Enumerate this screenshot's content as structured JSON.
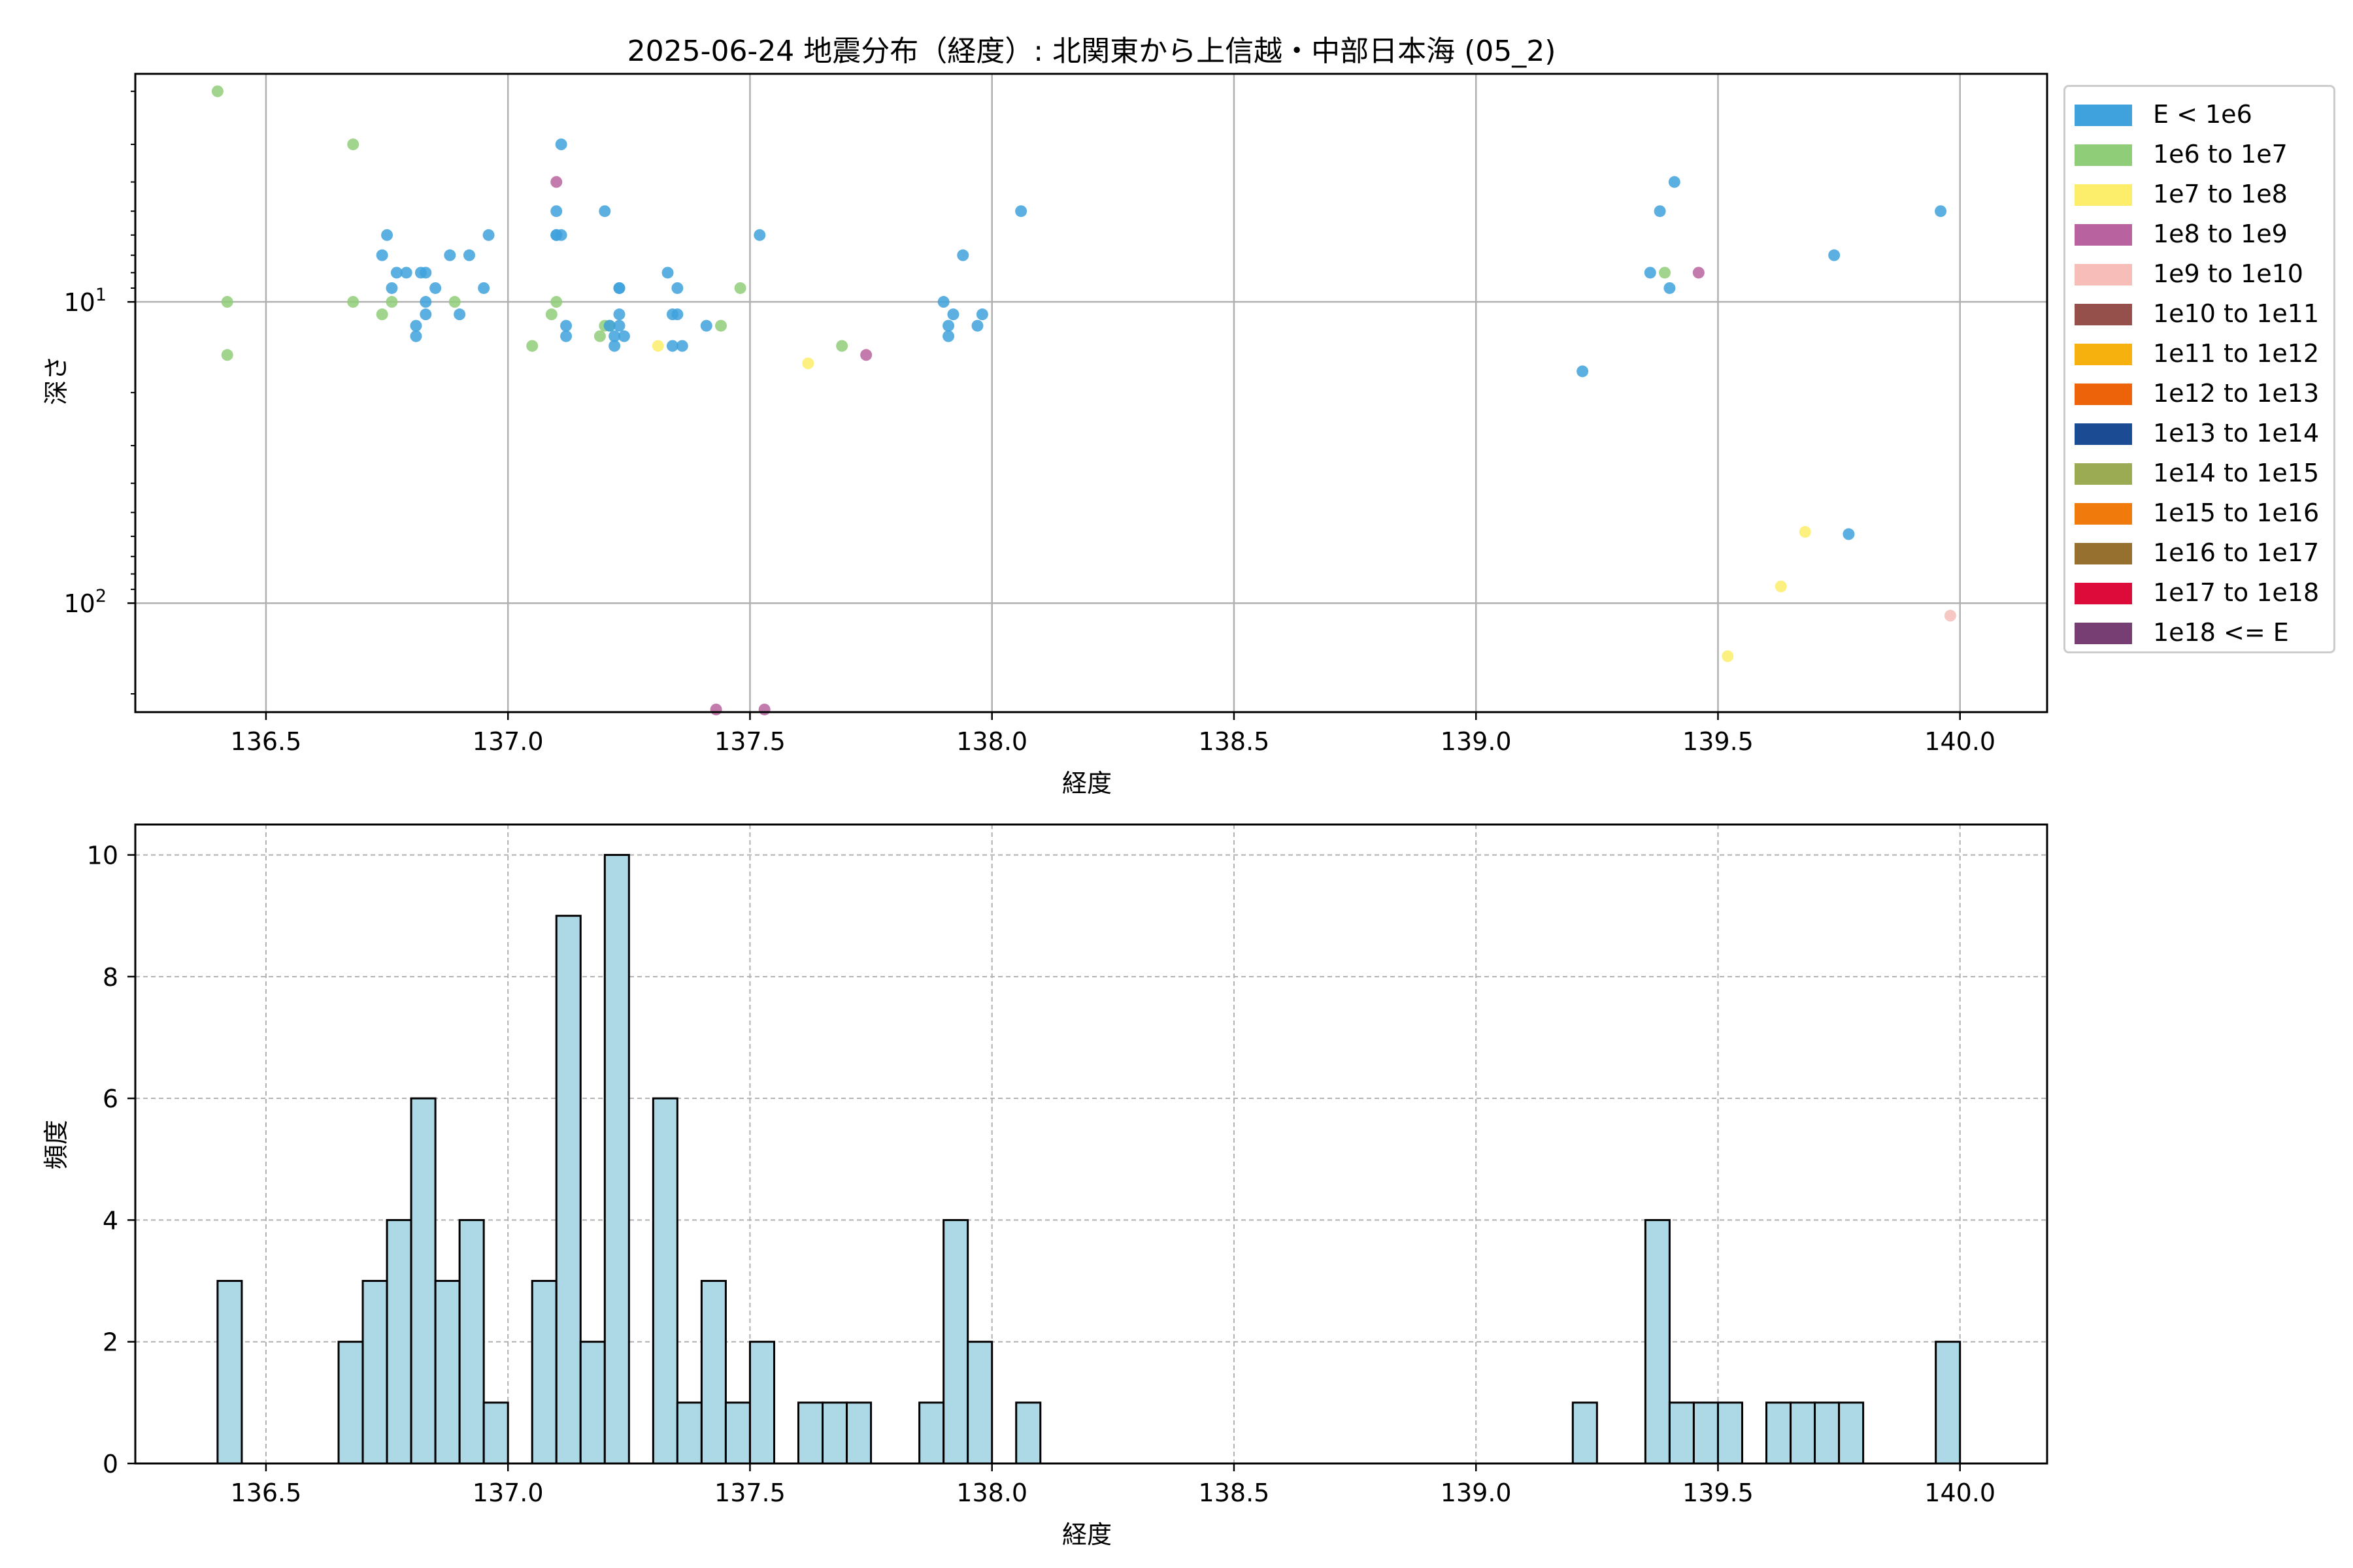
{
  "title": "2025-06-24 地震分布（経度）: 北関東から上信越・中部日本海 (05_2)",
  "legend": [
    {
      "label": "E < 1e6",
      "color": "#3fa2dc"
    },
    {
      "label": "1e6 to 1e7",
      "color": "#90cd78"
    },
    {
      "label": "1e7 to 1e8",
      "color": "#fcee6a"
    },
    {
      "label": "1e8 to 1e9",
      "color": "#b8639f"
    },
    {
      "label": "1e9 to 1e10",
      "color": "#f6bdb9"
    },
    {
      "label": "1e10 to 1e11",
      "color": "#95504b"
    },
    {
      "label": "1e11 to 1e12",
      "color": "#f6b10f"
    },
    {
      "label": "1e12 to 1e13",
      "color": "#ec630a"
    },
    {
      "label": "1e13 to 1e14",
      "color": "#1b4b93"
    },
    {
      "label": "1e14 to 1e15",
      "color": "#9aab53"
    },
    {
      "label": "1e15 to 1e16",
      "color": "#f07a0c"
    },
    {
      "label": "1e16 to 1e17",
      "color": "#96702e"
    },
    {
      "label": "1e17 to 1e18",
      "color": "#dc0b3a"
    },
    {
      "label": "1e18 <= E",
      "color": "#763e72"
    }
  ],
  "chart_data": [
    {
      "type": "scatter",
      "xlabel": "経度",
      "ylabel": "深さ",
      "xlim": [
        136.23,
        140.18
      ],
      "ylim": [
        1.75,
        230
      ],
      "yscale": "log",
      "y_inverted": true,
      "grid": true,
      "xticks": [
        "136.5",
        "137.0",
        "137.5",
        "138.0",
        "138.5",
        "139.0",
        "139.5",
        "140.0"
      ],
      "yticks": [
        {
          "value": 10,
          "base": "10",
          "exp": "1"
        },
        {
          "value": 100,
          "base": "10",
          "exp": "2"
        }
      ],
      "points": [
        {
          "x": 136.4,
          "y": 2.0,
          "c": 1
        },
        {
          "x": 136.42,
          "y": 10,
          "c": 1
        },
        {
          "x": 136.42,
          "y": 15,
          "c": 1
        },
        {
          "x": 136.68,
          "y": 3.0,
          "c": 1
        },
        {
          "x": 136.68,
          "y": 10,
          "c": 1
        },
        {
          "x": 136.74,
          "y": 11,
          "c": 1
        },
        {
          "x": 136.76,
          "y": 10,
          "c": 1
        },
        {
          "x": 136.89,
          "y": 10,
          "c": 1
        },
        {
          "x": 136.74,
          "y": 7.0,
          "c": 0
        },
        {
          "x": 136.75,
          "y": 6.0,
          "c": 0
        },
        {
          "x": 136.76,
          "y": 9.0,
          "c": 0
        },
        {
          "x": 136.77,
          "y": 8.0,
          "c": 0
        },
        {
          "x": 136.79,
          "y": 8.0,
          "c": 0
        },
        {
          "x": 136.81,
          "y": 13,
          "c": 0
        },
        {
          "x": 136.81,
          "y": 12,
          "c": 0
        },
        {
          "x": 136.82,
          "y": 8.0,
          "c": 0
        },
        {
          "x": 136.83,
          "y": 8.0,
          "c": 0
        },
        {
          "x": 136.83,
          "y": 10,
          "c": 0
        },
        {
          "x": 136.83,
          "y": 11,
          "c": 0
        },
        {
          "x": 136.85,
          "y": 9.0,
          "c": 0
        },
        {
          "x": 136.88,
          "y": 7.0,
          "c": 0
        },
        {
          "x": 136.9,
          "y": 11,
          "c": 0
        },
        {
          "x": 136.92,
          "y": 7.0,
          "c": 0
        },
        {
          "x": 136.95,
          "y": 9.0,
          "c": 0
        },
        {
          "x": 136.96,
          "y": 6.0,
          "c": 0
        },
        {
          "x": 137.05,
          "y": 14,
          "c": 1
        },
        {
          "x": 137.09,
          "y": 11,
          "c": 1
        },
        {
          "x": 137.1,
          "y": 10,
          "c": 1
        },
        {
          "x": 137.19,
          "y": 13,
          "c": 1
        },
        {
          "x": 137.2,
          "y": 12,
          "c": 1
        },
        {
          "x": 137.21,
          "y": 12,
          "c": 1
        },
        {
          "x": 137.44,
          "y": 12,
          "c": 1
        },
        {
          "x": 137.48,
          "y": 9.0,
          "c": 1
        },
        {
          "x": 137.69,
          "y": 14,
          "c": 1
        },
        {
          "x": 137.1,
          "y": 5.0,
          "c": 0
        },
        {
          "x": 137.1,
          "y": 6.0,
          "c": 0
        },
        {
          "x": 137.1,
          "y": 6.0,
          "c": 0
        },
        {
          "x": 137.11,
          "y": 3.0,
          "c": 0
        },
        {
          "x": 137.11,
          "y": 6.0,
          "c": 0
        },
        {
          "x": 137.12,
          "y": 12,
          "c": 0
        },
        {
          "x": 137.12,
          "y": 13,
          "c": 0
        },
        {
          "x": 137.2,
          "y": 5.0,
          "c": 0
        },
        {
          "x": 137.21,
          "y": 12,
          "c": 0
        },
        {
          "x": 137.22,
          "y": 13,
          "c": 0
        },
        {
          "x": 137.22,
          "y": 14,
          "c": 0
        },
        {
          "x": 137.23,
          "y": 9.0,
          "c": 0
        },
        {
          "x": 137.23,
          "y": 11,
          "c": 0
        },
        {
          "x": 137.23,
          "y": 12,
          "c": 0
        },
        {
          "x": 137.23,
          "y": 9.0,
          "c": 0
        },
        {
          "x": 137.24,
          "y": 13,
          "c": 0
        },
        {
          "x": 137.33,
          "y": 8.0,
          "c": 0
        },
        {
          "x": 137.34,
          "y": 11,
          "c": 0
        },
        {
          "x": 137.35,
          "y": 9.0,
          "c": 0
        },
        {
          "x": 137.35,
          "y": 11,
          "c": 0
        },
        {
          "x": 137.34,
          "y": 14,
          "c": 0
        },
        {
          "x": 137.36,
          "y": 14,
          "c": 0
        },
        {
          "x": 137.41,
          "y": 12,
          "c": 0
        },
        {
          "x": 137.52,
          "y": 6.0,
          "c": 0
        },
        {
          "x": 137.31,
          "y": 14,
          "c": 2
        },
        {
          "x": 137.62,
          "y": 16,
          "c": 2
        },
        {
          "x": 137.1,
          "y": 4.0,
          "c": 3
        },
        {
          "x": 137.43,
          "y": 250,
          "c": 3
        },
        {
          "x": 137.53,
          "y": 240,
          "c": 3
        },
        {
          "x": 137.74,
          "y": 15,
          "c": 3
        },
        {
          "x": 137.9,
          "y": 10,
          "c": 0
        },
        {
          "x": 137.91,
          "y": 12,
          "c": 0
        },
        {
          "x": 137.91,
          "y": 13,
          "c": 0
        },
        {
          "x": 137.92,
          "y": 11,
          "c": 0
        },
        {
          "x": 137.94,
          "y": 7.0,
          "c": 0
        },
        {
          "x": 137.97,
          "y": 12,
          "c": 0
        },
        {
          "x": 137.98,
          "y": 11,
          "c": 0
        },
        {
          "x": 138.06,
          "y": 5.0,
          "c": 0
        },
        {
          "x": 139.22,
          "y": 17,
          "c": 0
        },
        {
          "x": 139.36,
          "y": 8.0,
          "c": 0
        },
        {
          "x": 139.38,
          "y": 5.0,
          "c": 0
        },
        {
          "x": 139.4,
          "y": 9.0,
          "c": 0
        },
        {
          "x": 139.41,
          "y": 4.0,
          "c": 0
        },
        {
          "x": 139.39,
          "y": 8.0,
          "c": 1
        },
        {
          "x": 139.46,
          "y": 8.0,
          "c": 3
        },
        {
          "x": 139.52,
          "y": 150,
          "c": 2
        },
        {
          "x": 139.63,
          "y": 88,
          "c": 2
        },
        {
          "x": 139.68,
          "y": 58,
          "c": 2
        },
        {
          "x": 139.74,
          "y": 7.0,
          "c": 0
        },
        {
          "x": 139.77,
          "y": 59,
          "c": 0
        },
        {
          "x": 139.96,
          "y": 5.0,
          "c": 0
        },
        {
          "x": 139.98,
          "y": 110,
          "c": 4
        }
      ]
    },
    {
      "type": "bar",
      "xlabel": "経度",
      "ylabel": "頻度",
      "xlim": [
        136.23,
        140.18
      ],
      "ylim": [
        0,
        10.5
      ],
      "grid": true,
      "bin_width": 0.05,
      "bar_color": "#add8e6",
      "xticks": [
        "136.5",
        "137.0",
        "137.5",
        "138.0",
        "138.5",
        "139.0",
        "139.5",
        "140.0"
      ],
      "yticks": [
        "0",
        "2",
        "4",
        "6",
        "8",
        "10"
      ],
      "bins": [
        {
          "x": 136.4,
          "v": 3
        },
        {
          "x": 136.65,
          "v": 2
        },
        {
          "x": 136.7,
          "v": 3
        },
        {
          "x": 136.75,
          "v": 4
        },
        {
          "x": 136.8,
          "v": 6
        },
        {
          "x": 136.85,
          "v": 3
        },
        {
          "x": 136.9,
          "v": 4
        },
        {
          "x": 136.95,
          "v": 1
        },
        {
          "x": 137.05,
          "v": 3
        },
        {
          "x": 137.1,
          "v": 9
        },
        {
          "x": 137.15,
          "v": 2
        },
        {
          "x": 137.2,
          "v": 10
        },
        {
          "x": 137.3,
          "v": 6
        },
        {
          "x": 137.35,
          "v": 1
        },
        {
          "x": 137.4,
          "v": 3
        },
        {
          "x": 137.45,
          "v": 1
        },
        {
          "x": 137.5,
          "v": 2
        },
        {
          "x": 137.6,
          "v": 1
        },
        {
          "x": 137.65,
          "v": 1
        },
        {
          "x": 137.7,
          "v": 1
        },
        {
          "x": 137.85,
          "v": 1
        },
        {
          "x": 137.9,
          "v": 4
        },
        {
          "x": 137.95,
          "v": 2
        },
        {
          "x": 138.05,
          "v": 1
        },
        {
          "x": 139.2,
          "v": 1
        },
        {
          "x": 139.35,
          "v": 4
        },
        {
          "x": 139.4,
          "v": 1
        },
        {
          "x": 139.45,
          "v": 1
        },
        {
          "x": 139.5,
          "v": 1
        },
        {
          "x": 139.6,
          "v": 1
        },
        {
          "x": 139.65,
          "v": 1
        },
        {
          "x": 139.7,
          "v": 1
        },
        {
          "x": 139.75,
          "v": 1
        },
        {
          "x": 139.95,
          "v": 2
        }
      ]
    }
  ]
}
